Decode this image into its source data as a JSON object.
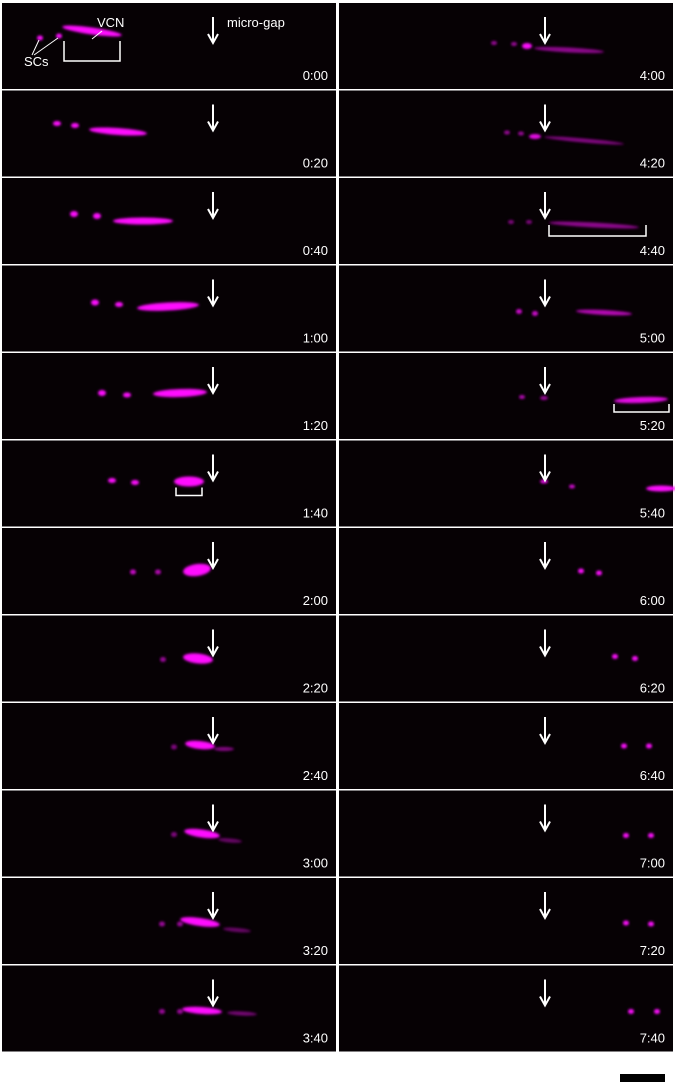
{
  "annotations": {
    "arrow_label": "micro-gap",
    "vcn": "VCN",
    "scs": "SCs"
  },
  "timestamps": [
    "0:00",
    "0:20",
    "0:40",
    "1:00",
    "1:20",
    "1:40",
    "2:00",
    "2:20",
    "2:40",
    "3:00",
    "3:20",
    "3:40",
    "4:00",
    "4:20",
    "4:40",
    "5:00",
    "5:20",
    "5:40",
    "6:00",
    "6:20",
    "6:40",
    "7:00",
    "7:20",
    "7:40"
  ]
}
